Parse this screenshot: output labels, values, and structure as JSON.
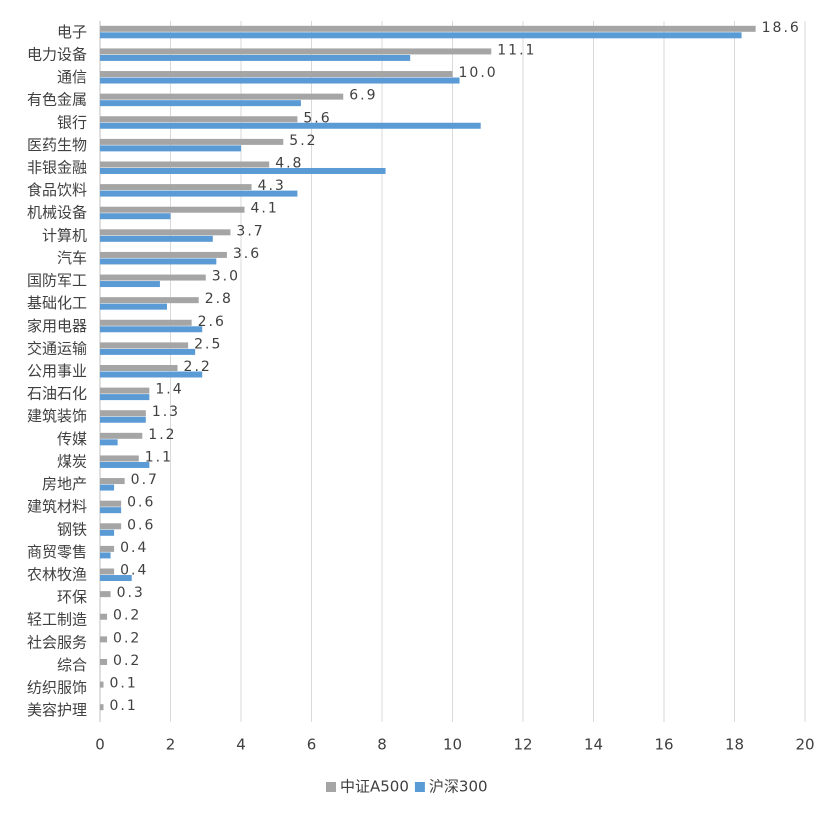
{
  "chart_data": {
    "type": "hbar",
    "categories": [
      "电子",
      "电力设备",
      "通信",
      "有色金属",
      "银行",
      "医药生物",
      "非银金融",
      "食品饮料",
      "机械设备",
      "计算机",
      "汽车",
      "国防军工",
      "基础化工",
      "家用电器",
      "交通运输",
      "公用事业",
      "石油石化",
      "建筑装饰",
      "传媒",
      "煤炭",
      "房地产",
      "建筑材料",
      "钢铁",
      "商贸零售",
      "农林牧渔",
      "环保",
      "轻工制造",
      "社会服务",
      "综合",
      "纺织服饰",
      "美容护理"
    ],
    "series": [
      {
        "name": "中证A500",
        "color": "#a5a5a5",
        "values": [
          18.6,
          11.1,
          10.0,
          6.9,
          5.6,
          5.2,
          4.8,
          4.3,
          4.1,
          3.7,
          3.6,
          3.0,
          2.8,
          2.6,
          2.5,
          2.2,
          1.4,
          1.3,
          1.2,
          1.1,
          0.7,
          0.6,
          0.6,
          0.4,
          0.4,
          0.3,
          0.2,
          0.2,
          0.2,
          0.1,
          0.1
        ],
        "value_labels": [
          "18.6",
          "11.1",
          "10.0",
          "6.9",
          "5.6",
          "5.2",
          "4.8",
          "4.3",
          "4.1",
          "3.7",
          "3.6",
          "3.0",
          "2.8",
          "2.6",
          "2.5",
          "2.2",
          "1.4",
          "1.3",
          "1.2",
          "1.1",
          "0.7",
          "0.6",
          "0.6",
          "0.4",
          "0.4",
          "0.3",
          "0.2",
          "0.2",
          "0.2",
          "0.1",
          "0.1"
        ]
      },
      {
        "name": "沪深300",
        "color": "#5b9bd5",
        "values": [
          18.2,
          8.8,
          10.2,
          5.7,
          10.8,
          4.0,
          8.1,
          5.6,
          2.0,
          3.2,
          3.3,
          1.7,
          1.9,
          2.9,
          2.7,
          2.9,
          1.4,
          1.3,
          0.5,
          1.4,
          0.4,
          0.6,
          0.4,
          0.3,
          0.9,
          0,
          0,
          0,
          0,
          0,
          0
        ]
      }
    ],
    "xlim": [
      0,
      20
    ],
    "xticks": [
      0,
      2,
      4,
      6,
      8,
      10,
      12,
      14,
      16,
      18,
      20
    ],
    "grid": true,
    "legend": "bottom"
  }
}
